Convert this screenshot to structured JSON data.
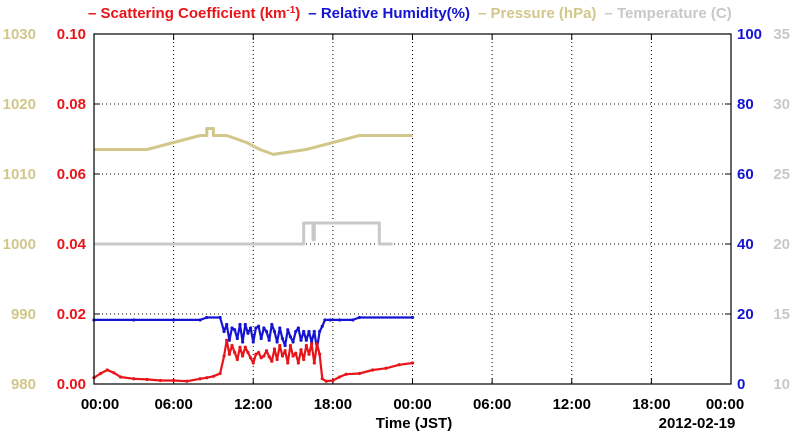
{
  "legend": [
    {
      "key": "scattering",
      "label": "Scattering Coefficient (km",
      "sup": "-1",
      "tail": ")",
      "color": "#e8141a"
    },
    {
      "key": "humidity",
      "label": "Relative Humidity(%)",
      "color": "#1414d2"
    },
    {
      "key": "pressure",
      "label": "Pressure (hPa)",
      "color": "#d2c78a"
    },
    {
      "key": "temperature",
      "label": "Temperature (",
      "tail": "C)",
      "color": "#c8c8c8"
    }
  ],
  "x_axis": {
    "title": "Time (JST)",
    "tick_labels": [
      "00:00",
      "06:00",
      "12:00",
      "18:00",
      "00:00",
      "06:00",
      "12:00",
      "18:00",
      "00:00"
    ],
    "date_label": "2012-02-19"
  },
  "chart_data": {
    "type": "line",
    "x_unit": "hours since first 00:00 tick",
    "xlim": [
      0,
      48
    ],
    "grid": true,
    "axes": {
      "pressure": {
        "side": "left-outer",
        "ylim": [
          980,
          1030
        ],
        "ticks": [
          "980",
          "990",
          "1000",
          "1010",
          "1020",
          "1030"
        ],
        "color": "#d2c78a"
      },
      "scattering": {
        "side": "left-inner",
        "ylim": [
          0,
          0.1
        ],
        "ticks": [
          "0.00",
          "0.02",
          "0.04",
          "0.06",
          "0.08",
          "0.10"
        ],
        "color": "#e8141a"
      },
      "humidity": {
        "side": "right-inner",
        "ylim": [
          0,
          100
        ],
        "ticks": [
          "0",
          "20",
          "40",
          "60",
          "80",
          "100"
        ],
        "color": "#1414d2"
      },
      "temperature": {
        "side": "right-outer",
        "ylim": [
          10,
          35
        ],
        "ticks": [
          "10",
          "15",
          "20",
          "25",
          "30",
          "35"
        ],
        "color": "#c8c8c8"
      }
    },
    "series": [
      {
        "name": "Pressure (hPa)",
        "axis": "pressure",
        "color": "#d2c78a",
        "step": true,
        "x": [
          0,
          4,
          4,
          6,
          6,
          8,
          8,
          8.5,
          8.5,
          9,
          9,
          10,
          10,
          11.5,
          11.5,
          12.5,
          12.5,
          13.5,
          13.5,
          16,
          16,
          18,
          18,
          20,
          20,
          24
        ],
        "y": [
          1013.5,
          1013.5,
          1013.5,
          1014.5,
          1014.5,
          1015.5,
          1015.5,
          1015.5,
          1016.5,
          1016.5,
          1015.5,
          1015.5,
          1015.5,
          1014.5,
          1014.5,
          1013.5,
          1013.5,
          1012.8,
          1012.8,
          1013.5,
          1013.5,
          1014.5,
          1014.5,
          1015.5,
          1015.5,
          1015.5
        ]
      },
      {
        "name": "Temperature (C)",
        "axis": "temperature",
        "color": "#c8c8c8",
        "step": true,
        "x": [
          0,
          15.8,
          15.8,
          16.5,
          16.5,
          16.6,
          16.6,
          21.5,
          21.5,
          22.5
        ],
        "y": [
          20,
          20,
          21.5,
          21.5,
          20.3,
          20.3,
          21.5,
          21.5,
          20,
          20
        ]
      },
      {
        "name": "Relative Humidity(%)",
        "axis": "humidity",
        "color": "#1414d2",
        "x": [
          0,
          3,
          6,
          8,
          8.5,
          9.5,
          9.8,
          10,
          10.2,
          10.4,
          10.6,
          10.8,
          11,
          11.2,
          11.4,
          11.6,
          11.8,
          12,
          12.2,
          12.4,
          12.6,
          12.8,
          13,
          13.2,
          13.4,
          13.6,
          13.8,
          14,
          14.2,
          14.4,
          14.6,
          14.8,
          15,
          15.2,
          15.4,
          15.6,
          15.8,
          16,
          16.2,
          16.4,
          16.6,
          16.8,
          17,
          17.2,
          17.4,
          17.8,
          18.5,
          19.5,
          20,
          24
        ],
        "y": [
          18.3,
          18.3,
          18.3,
          18.3,
          19,
          19,
          15,
          17,
          12.5,
          16,
          15.5,
          13,
          17,
          12,
          17,
          14.5,
          16,
          12,
          16,
          16.5,
          13,
          16,
          15,
          12.5,
          17,
          15,
          12,
          16,
          13,
          11,
          15.5,
          13.5,
          12,
          15,
          16,
          12.5,
          15,
          12.5,
          15,
          12,
          15,
          10,
          15,
          16.5,
          18.3,
          18.3,
          18.3,
          18.3,
          19,
          19
        ]
      },
      {
        "name": "Scattering Coefficient (km-1)",
        "axis": "scattering",
        "color": "#e8141a",
        "x": [
          0,
          0.5,
          1,
          1.5,
          2,
          3,
          4,
          5,
          6,
          7,
          8,
          8.5,
          9,
          9.5,
          9.8,
          10,
          10.2,
          10.4,
          10.6,
          10.8,
          11,
          11.2,
          11.4,
          11.6,
          11.8,
          12,
          12.2,
          12.4,
          12.6,
          12.8,
          13,
          13.2,
          13.4,
          13.6,
          13.8,
          14,
          14.2,
          14.4,
          14.6,
          14.8,
          15,
          15.2,
          15.4,
          15.6,
          15.8,
          16,
          16.2,
          16.4,
          16.6,
          16.8,
          17,
          17.2,
          17.5,
          18,
          18.5,
          19,
          20,
          21,
          22,
          23,
          24
        ],
        "y": [
          0.0018,
          0.003,
          0.004,
          0.0032,
          0.002,
          0.0015,
          0.0013,
          0.001,
          0.001,
          0.0008,
          0.0015,
          0.0018,
          0.0022,
          0.003,
          0.008,
          0.0125,
          0.0085,
          0.011,
          0.009,
          0.007,
          0.0105,
          0.008,
          0.0105,
          0.009,
          0.0075,
          0.006,
          0.0085,
          0.009,
          0.0075,
          0.008,
          0.0095,
          0.0078,
          0.0065,
          0.01,
          0.007,
          0.011,
          0.008,
          0.0095,
          0.006,
          0.011,
          0.008,
          0.0088,
          0.006,
          0.0098,
          0.007,
          0.011,
          0.0085,
          0.0115,
          0.006,
          0.0115,
          0.0085,
          0.0015,
          0.0008,
          0.001,
          0.002,
          0.0028,
          0.003,
          0.004,
          0.0045,
          0.0055,
          0.006
        ]
      }
    ]
  }
}
